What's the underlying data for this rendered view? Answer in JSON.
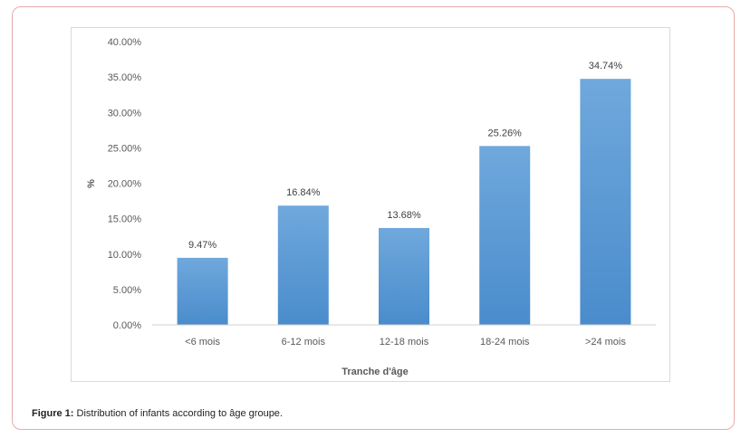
{
  "chart_data": {
    "type": "bar",
    "categories": [
      "<6 mois",
      "6-12 mois",
      "12-18 mois",
      "18-24 mois",
      ">24 mois"
    ],
    "values": [
      9.47,
      16.84,
      13.68,
      25.26,
      34.74
    ],
    "value_labels": [
      "9.47%",
      "16.84%",
      "13.68%",
      "25.26%",
      "34.74%"
    ],
    "ylim": [
      0,
      40
    ],
    "yticks": [
      0,
      5,
      10,
      15,
      20,
      25,
      30,
      35,
      40
    ],
    "ytick_labels": [
      "0.00%",
      "5.00%",
      "10.00%",
      "15.00%",
      "20.00%",
      "25.00%",
      "30.00%",
      "35.00%",
      "40.00%"
    ],
    "xlabel": "Tranche d'âge",
    "ylabel": "%",
    "grid": false,
    "bar_color": "#5b9bd5"
  },
  "caption": {
    "label": "Figure 1:",
    "text": " Distribution of infants according to âge groupe."
  }
}
